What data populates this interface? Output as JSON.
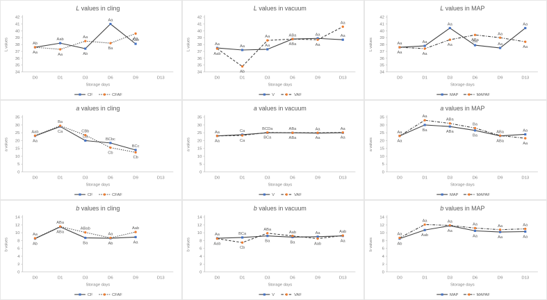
{
  "page": {
    "title": "Colour parameter charts",
    "background": "#ffffff"
  },
  "colors": {
    "line": "#404040",
    "series1_marker": "#4472C4",
    "series2_marker": "#ED7D31",
    "axis": "#BFBFBF",
    "title_text": "#595959",
    "tick_text": "#7f7f7f",
    "annotation_text": "#595959",
    "panel_border": "#e6e6e6"
  },
  "chart_data": [
    {
      "type": "line",
      "title_italic": "L",
      "title_rest": " values in cling",
      "ylabel": "L values",
      "xlabel": "Storage days",
      "ylim": [
        34,
        42
      ],
      "ytick_step": 1,
      "categories": [
        "D0",
        "D1",
        "D3",
        "D6",
        "D9",
        "D13"
      ],
      "legend_position": "bottom",
      "grid": false,
      "series": [
        {
          "name": "CF",
          "marker": "square",
          "marker_color": "#4472C4",
          "line_style": "solid",
          "values": [
            37.6,
            38.2,
            37.4,
            41.0,
            38.1
          ],
          "point_labels": [
            "Ab",
            "Aab",
            "Ab",
            "Aa",
            "Aab"
          ],
          "label_pos": [
            "a",
            "a",
            "b",
            "a",
            "a"
          ]
        },
        {
          "name": "CFAF",
          "marker": "circle",
          "marker_color": "#ED7D31",
          "line_style": "dotted",
          "values": [
            37.6,
            37.3,
            38.5,
            38.2,
            39.6
          ],
          "point_labels": [
            "Aa",
            "Aa",
            "Aa",
            "Ba",
            "Aa"
          ],
          "label_pos": [
            "b",
            "b",
            "a",
            "b",
            "b"
          ]
        }
      ]
    },
    {
      "type": "line",
      "title_italic": "L",
      "title_rest": " values in vacuum",
      "ylabel": "L values",
      "xlabel": "Storage days",
      "ylim": [
        34,
        42
      ],
      "ytick_step": 1,
      "categories": [
        "D0",
        "D1",
        "D3",
        "D6",
        "D9",
        "D13"
      ],
      "legend_position": "bottom",
      "grid": false,
      "series": [
        {
          "name": "V",
          "marker": "square",
          "marker_color": "#4472C4",
          "line_style": "solid",
          "values": [
            37.5,
            37.2,
            37.3,
            38.8,
            38.9,
            38.7
          ],
          "point_labels": [
            "Aa",
            "Aa",
            "Aa",
            "ABa",
            "Aa",
            "Aa"
          ],
          "label_pos": [
            "a",
            "a",
            "a",
            "a",
            "a",
            "a"
          ]
        },
        {
          "name": "VAF",
          "marker": "circle",
          "marker_color": "#ED7D31",
          "line_style": "dashed",
          "values": [
            37.4,
            34.8,
            38.6,
            38.8,
            38.7,
            40.6
          ],
          "point_labels": [
            "Aab",
            "Ab",
            "Aa",
            "ABa",
            "Aa",
            "Aa"
          ],
          "label_pos": [
            "b",
            "b",
            "a",
            "b",
            "b",
            "a"
          ]
        }
      ]
    },
    {
      "type": "line",
      "title_italic": "L",
      "title_rest": " values in MAP",
      "ylabel": "L values",
      "xlabel": "Storage days",
      "ylim": [
        34,
        42
      ],
      "ytick_step": 1,
      "categories": [
        "D0",
        "D1",
        "D3",
        "D6",
        "D9",
        "D13"
      ],
      "legend_position": "bottom",
      "grid": false,
      "series": [
        {
          "name": "MAP",
          "marker": "square",
          "marker_color": "#4472C4",
          "line_style": "solid",
          "values": [
            37.6,
            37.8,
            40.4,
            37.9,
            37.5,
            40.4
          ],
          "point_labels": [
            "Aa",
            "Aa",
            "Aa",
            "Ba",
            "Aa",
            "Aa"
          ],
          "label_pos": [
            "a",
            "a",
            "a",
            "a",
            "a",
            "a"
          ]
        },
        {
          "name": "MAPAF",
          "marker": "circle",
          "marker_color": "#ED7D31",
          "line_style": "dashdot",
          "values": [
            37.6,
            37.4,
            38.7,
            39.4,
            39.0,
            38.4
          ],
          "point_labels": [
            "Aa",
            "Aa",
            "Aa",
            "ABa",
            "Aa",
            "Aa"
          ],
          "label_pos": [
            "b",
            "b",
            "b",
            "b",
            "a",
            "b"
          ]
        }
      ]
    },
    {
      "type": "line",
      "title_italic": "a",
      "title_rest": " values in cling",
      "ylabel": "a values",
      "xlabel": "Storage days",
      "ylim": [
        0,
        35
      ],
      "ytick_step": 5,
      "categories": [
        "D0",
        "D1",
        "D3",
        "D6",
        "D9",
        "D13"
      ],
      "legend_position": "bottom",
      "grid": false,
      "series": [
        {
          "name": "CF",
          "marker": "square",
          "marker_color": "#4472C4",
          "line_style": "solid",
          "values": [
            23.0,
            29.0,
            20.0,
            18.5,
            14.0
          ],
          "point_labels": [
            "Aa",
            "Ca",
            "Da",
            "BCbc",
            "BCc"
          ],
          "label_pos": [
            "b",
            "b",
            "a",
            "a",
            "a"
          ]
        },
        {
          "name": "CFAF",
          "marker": "circle",
          "marker_color": "#ED7D31",
          "line_style": "dotted",
          "values": [
            23.2,
            29.5,
            23.5,
            15.5,
            12.5
          ],
          "point_labels": [
            "Aab",
            "Ba",
            "CBb",
            "Cb",
            "Cb"
          ],
          "label_pos": [
            "a",
            "a",
            "a",
            "b",
            "b"
          ]
        }
      ]
    },
    {
      "type": "line",
      "title_italic": "a",
      "title_rest": " values in vacuum",
      "ylabel": "a values",
      "xlabel": "Storage days",
      "ylim": [
        0,
        35
      ],
      "ytick_step": 5,
      "categories": [
        "D0",
        "D1",
        "D3",
        "D6",
        "D9",
        "D13"
      ],
      "legend_position": "bottom",
      "grid": false,
      "series": [
        {
          "name": "V",
          "marker": "square",
          "marker_color": "#4472C4",
          "line_style": "solid",
          "values": [
            23.0,
            23.8,
            25.0,
            25.0,
            24.8,
            25.0
          ],
          "point_labels": [
            "Aa",
            "Ca",
            "BCDa",
            "ABa",
            "Aa",
            "Aa"
          ],
          "label_pos": [
            "a",
            "a",
            "a",
            "a",
            "a",
            "a"
          ]
        },
        {
          "name": "VAF",
          "marker": "circle",
          "marker_color": "#ED7D31",
          "line_style": "dashed",
          "values": [
            23.0,
            23.3,
            25.2,
            25.0,
            25.0,
            25.2
          ],
          "point_labels": [
            "Aa",
            "Ca",
            "BCa",
            "ABa",
            "Aa",
            "Aa"
          ],
          "label_pos": [
            "b",
            "b",
            "b",
            "b",
            "b",
            "b"
          ]
        }
      ]
    },
    {
      "type": "line",
      "title_italic": "a",
      "title_rest": " values in MAP",
      "ylabel": "a values",
      "xlabel": "Storage days",
      "ylim": [
        0,
        35
      ],
      "ytick_step": 5,
      "categories": [
        "D0",
        "D1",
        "D3",
        "D6",
        "D9",
        "D13"
      ],
      "legend_position": "bottom",
      "grid": false,
      "series": [
        {
          "name": "MAP",
          "marker": "square",
          "marker_color": "#4472C4",
          "line_style": "solid",
          "values": [
            23.0,
            30.0,
            29.0,
            26.5,
            23.0,
            24.0
          ],
          "point_labels": [
            "Aa",
            "Ba",
            "ABa",
            "Ba",
            "ABa",
            "Aa"
          ],
          "label_pos": [
            "b",
            "b",
            "b",
            "b",
            "b",
            "a"
          ]
        },
        {
          "name": "MAPAF",
          "marker": "circle",
          "marker_color": "#ED7D31",
          "line_style": "dashdot",
          "values": [
            23.0,
            33.0,
            31.0,
            28.0,
            23.2,
            21.5
          ],
          "point_labels": [
            "Aa",
            "Aa",
            "ABa",
            "Ba",
            "ABa",
            "Aa"
          ],
          "label_pos": [
            "a",
            "a",
            "a",
            "a",
            "a",
            "b"
          ]
        }
      ]
    },
    {
      "type": "line",
      "title_italic": "b",
      "title_rest": " values in cling",
      "ylabel": "b values",
      "xlabel": "Storage days",
      "ylim": [
        0,
        14
      ],
      "ytick_step": 2,
      "categories": [
        "D0",
        "D1",
        "D3",
        "D6",
        "D9",
        "D13"
      ],
      "legend_position": "bottom",
      "grid": false,
      "series": [
        {
          "name": "CF",
          "marker": "square",
          "marker_color": "#4472C4",
          "line_style": "solid",
          "values": [
            8.5,
            11.5,
            8.7,
            8.6,
            8.9
          ],
          "point_labels": [
            "Ab",
            "ABa",
            "Ba",
            "Ab",
            "Aa"
          ],
          "label_pos": [
            "b",
            "b",
            "b",
            "b",
            "b"
          ]
        },
        {
          "name": "CFAF",
          "marker": "circle",
          "marker_color": "#ED7D31",
          "line_style": "dotted",
          "values": [
            8.6,
            11.6,
            10.1,
            8.7,
            10.2
          ],
          "point_labels": [
            "Aa",
            "ABa",
            "ABab",
            "Aa",
            "Aab"
          ],
          "label_pos": [
            "a",
            "a",
            "a",
            "a",
            "a"
          ]
        }
      ]
    },
    {
      "type": "line",
      "title_italic": "b",
      "title_rest": " values in vacuum",
      "ylabel": "b values",
      "xlabel": "Storage days",
      "ylim": [
        0,
        14
      ],
      "ytick_step": 2,
      "categories": [
        "D0",
        "D1",
        "D3",
        "D6",
        "D9",
        "D13"
      ],
      "legend_position": "bottom",
      "grid": false,
      "series": [
        {
          "name": "V",
          "marker": "square",
          "marker_color": "#4472C4",
          "line_style": "solid",
          "values": [
            8.6,
            8.8,
            9.2,
            8.9,
            9.0,
            9.2
          ],
          "point_labels": [
            "Aa",
            "BCa",
            "Ba",
            "Ba",
            "Aa",
            "Aa"
          ],
          "label_pos": [
            "a",
            "a",
            "b",
            "b",
            "a",
            "b"
          ]
        },
        {
          "name": "VAF",
          "marker": "circle",
          "marker_color": "#ED7D31",
          "line_style": "dashed",
          "values": [
            8.5,
            7.5,
            9.9,
            9.2,
            8.5,
            9.3
          ],
          "point_labels": [
            "Aab",
            "Cb",
            "ABa",
            "Aab",
            "Aab",
            "Aab"
          ],
          "label_pos": [
            "b",
            "b",
            "a",
            "a",
            "b",
            "a"
          ]
        }
      ]
    },
    {
      "type": "line",
      "title_italic": "b",
      "title_rest": " values in MAP",
      "ylabel": "b values",
      "xlabel": "Storage days",
      "ylim": [
        0,
        14
      ],
      "ytick_step": 2,
      "categories": [
        "D0",
        "D1",
        "D3",
        "D6",
        "D9",
        "D13"
      ],
      "legend_position": "bottom",
      "grid": false,
      "series": [
        {
          "name": "MAP",
          "marker": "square",
          "marker_color": "#4472C4",
          "line_style": "solid",
          "values": [
            8.5,
            10.7,
            11.8,
            10.5,
            10.2,
            10.3
          ],
          "point_labels": [
            "Ab",
            "Aab",
            "Aa",
            "Aa",
            "Aa",
            "Aa"
          ],
          "label_pos": [
            "b",
            "b",
            "b",
            "b",
            "b",
            "b"
          ]
        },
        {
          "name": "MAPAF",
          "marker": "circle",
          "marker_color": "#ED7D31",
          "line_style": "dashdot",
          "values": [
            8.7,
            12.1,
            11.9,
            11.2,
            10.8,
            11.0
          ],
          "point_labels": [
            "Aa",
            "Aa",
            "Aa",
            "Aa",
            "Aa",
            "Aa"
          ],
          "label_pos": [
            "a",
            "a",
            "a",
            "a",
            "a",
            "a"
          ]
        }
      ]
    }
  ]
}
